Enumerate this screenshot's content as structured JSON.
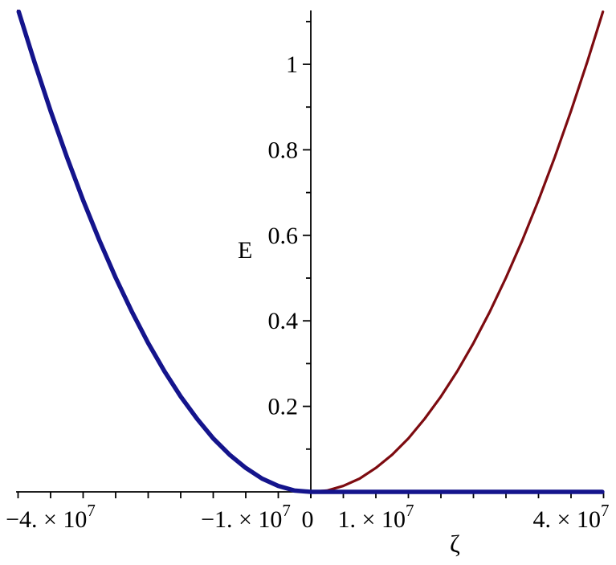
{
  "chart_data": {
    "type": "line",
    "title": "",
    "xlabel": "ζ",
    "ylabel": "E",
    "x_units_note": "x values in units of 10^7",
    "xlim": [
      -4.53,
      4.51
    ],
    "ylim": [
      0,
      1.124
    ],
    "grid": false,
    "legend": false,
    "background_color": "#ffffff",
    "axis_color": "#000000",
    "x_ticks": [
      -4.5,
      -4,
      -3.5,
      -3,
      -2.5,
      -2,
      -1.5,
      -1,
      -0.5,
      0,
      0.5,
      1,
      1.5,
      2,
      2.5,
      3,
      3.5,
      4,
      4.5
    ],
    "x_tick_labels": [
      {
        "value": -4,
        "text": "−4. × 10^7",
        "dx": 0
      },
      {
        "value": -1,
        "text": "−1. × 10^7",
        "dx": 0
      },
      {
        "value": 0,
        "text": "0",
        "dx": -4
      },
      {
        "value": 1,
        "text": "1. × 10^7",
        "dx": 0
      },
      {
        "value": 4,
        "text": "4. × 10^7",
        "dx": 0
      }
    ],
    "y_major_ticks": [
      {
        "value": 0.2,
        "text": "0.2"
      },
      {
        "value": 0.4,
        "text": "0.4"
      },
      {
        "value": 0.6,
        "text": "0.6"
      },
      {
        "value": 0.8,
        "text": "0.8"
      },
      {
        "value": 1.0,
        "text": "1"
      }
    ],
    "y_minor_ticks": [
      0.1,
      0.3,
      0.5,
      0.7,
      0.9,
      1.1
    ],
    "series": [
      {
        "name": "red-parabola",
        "color": "#7D0B10",
        "stroke_width": 3.2,
        "x": [
          -4.52,
          -4.25,
          -4,
          -3.75,
          -3.5,
          -3.25,
          -3,
          -2.75,
          -2.5,
          -2.25,
          -2,
          -1.75,
          -1.5,
          -1.25,
          -1,
          -0.75,
          -0.5,
          -0.25,
          0,
          0.25,
          0.5,
          0.75,
          1,
          1.25,
          1.5,
          1.75,
          2,
          2.25,
          2.5,
          2.75,
          3,
          3.25,
          3.5,
          3.75,
          4,
          4.25,
          4.49
        ],
        "y": [
          1.138,
          1.006,
          0.891,
          0.783,
          0.682,
          0.588,
          0.501,
          0.421,
          0.348,
          0.282,
          0.223,
          0.171,
          0.125,
          0.087,
          0.056,
          0.031,
          0.014,
          0.003,
          0,
          0.003,
          0.014,
          0.031,
          0.056,
          0.087,
          0.125,
          0.171,
          0.223,
          0.282,
          0.348,
          0.421,
          0.501,
          0.588,
          0.682,
          0.783,
          0.891,
          1.006,
          1.123
        ]
      },
      {
        "name": "blue-piecewise",
        "color": "#14148C",
        "stroke_width": 5.5,
        "x": [
          -4.49,
          -4.25,
          -4,
          -3.75,
          -3.5,
          -3.25,
          -3,
          -2.75,
          -2.5,
          -2.25,
          -2,
          -1.75,
          -1.5,
          -1.25,
          -1,
          -0.75,
          -0.5,
          -0.25,
          0,
          0.5,
          1,
          1.5,
          2,
          2.5,
          3,
          3.5,
          4,
          4.48
        ],
        "y": [
          1.123,
          1.006,
          0.891,
          0.783,
          0.682,
          0.588,
          0.501,
          0.421,
          0.348,
          0.282,
          0.223,
          0.171,
          0.125,
          0.087,
          0.056,
          0.031,
          0.014,
          0.003,
          0,
          0,
          0,
          0,
          0,
          0,
          0,
          0,
          0,
          0
        ]
      }
    ]
  }
}
